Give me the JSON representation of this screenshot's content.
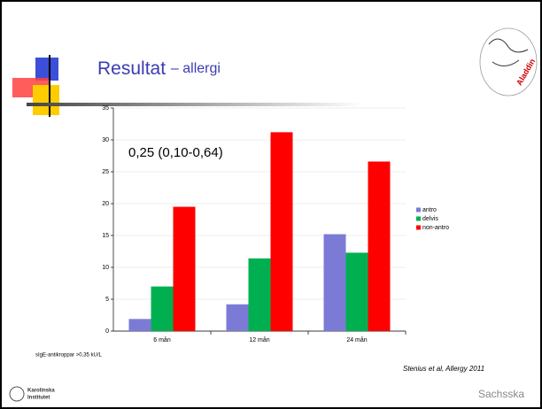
{
  "header": {
    "title": "Resultat",
    "subtitle": "– allergi"
  },
  "logos": {
    "top_right": "Aladdin",
    "bottom_left": [
      "Karolinska",
      "Institutet"
    ],
    "bottom_right": "Sachsska"
  },
  "chart_data": {
    "type": "bar",
    "categories": [
      "6 mån",
      "12 mån",
      "24 mån"
    ],
    "series": [
      {
        "name": "antro",
        "color": "#7b7bd6",
        "values": [
          1.9,
          4.2,
          15.2
        ]
      },
      {
        "name": "delvis",
        "color": "#00b050",
        "values": [
          7,
          11.4,
          12.3
        ]
      },
      {
        "name": "non-antro",
        "color": "#ff0000",
        "values": [
          19.5,
          31.2,
          26.6
        ]
      }
    ],
    "ylim": [
      0,
      35
    ],
    "yticks": [
      0,
      5,
      10,
      15,
      20,
      25,
      30,
      35
    ],
    "grid": true,
    "legend": "right",
    "annotation": "0,25 (0,10-0,64)",
    "footnote": "sIgE-antikroppar >0,35 kU/L",
    "source": "Stenius et al, Allergy 2011"
  }
}
